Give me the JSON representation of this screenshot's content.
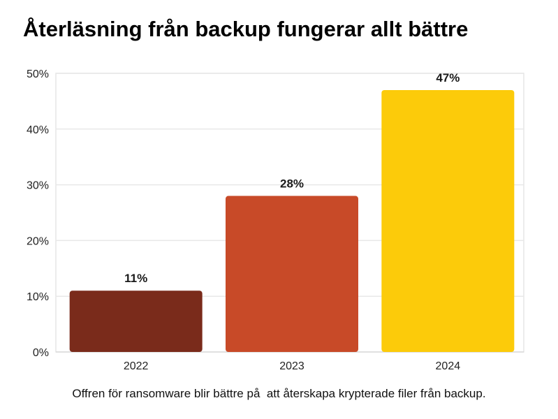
{
  "title": "Återläsning från backup fungerar allt bättre",
  "caption": "Offren för ransomware blir bättre på  att återskapa krypterade filer från backup.",
  "chart_data": {
    "type": "bar",
    "categories": [
      "2022",
      "2023",
      "2024"
    ],
    "values": [
      11,
      28,
      47
    ],
    "value_labels": [
      "11%",
      "28%",
      "47%"
    ],
    "colors": [
      "#7a2b1b",
      "#c84a28",
      "#fccb0a"
    ],
    "ylim": [
      0,
      50
    ],
    "yticks": [
      0,
      10,
      20,
      30,
      40,
      50
    ],
    "ytick_labels": [
      "0%",
      "10%",
      "20%",
      "30%",
      "40%",
      "50%"
    ],
    "grid": true,
    "legend": "none"
  }
}
